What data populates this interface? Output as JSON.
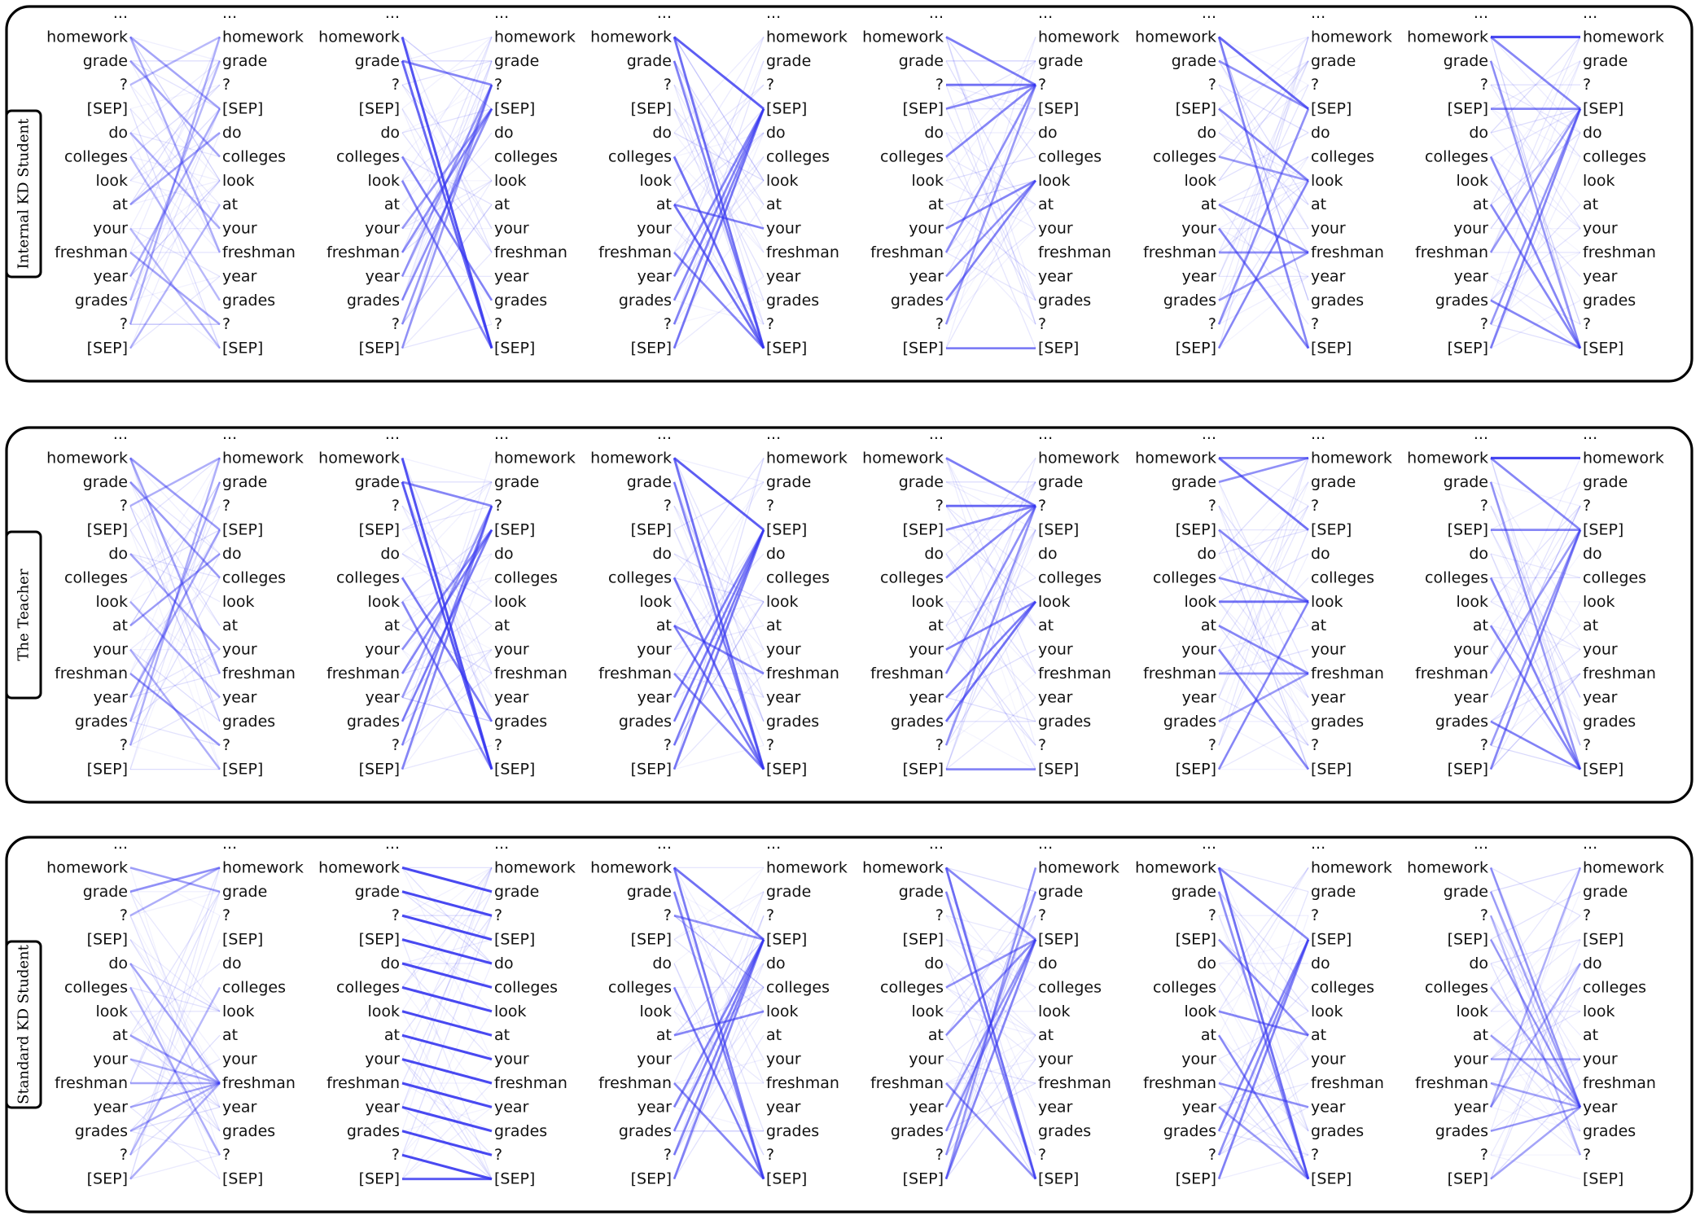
{
  "tokens": [
    "...",
    "homework",
    "grade",
    "?",
    "[SEP]",
    "do",
    "colleges",
    "look",
    "at",
    "your",
    "freshman",
    "year",
    "grades",
    "?",
    "[SEP]"
  ],
  "line_color": "#3535f0",
  "panels": [
    {
      "label": "Internal KD Student",
      "heads": [
        {
          "pattern": "mixed",
          "edges": [
            [
              1,
              4,
              0.45
            ],
            [
              1,
              10,
              0.4
            ],
            [
              2,
              6,
              0.45
            ],
            [
              3,
              1,
              0.35
            ],
            [
              5,
              9,
              0.4
            ],
            [
              8,
              5,
              0.45
            ],
            [
              9,
              14,
              0.35
            ],
            [
              10,
              13,
              0.45
            ],
            [
              11,
              4,
              0.4
            ],
            [
              12,
              2,
              0.35
            ],
            [
              13,
              1,
              0.4
            ],
            [
              14,
              8,
              0.35
            ],
            [
              6,
              12,
              0.35
            ]
          ]
        },
        {
          "pattern": "cross",
          "edges": [
            [
              1,
              14,
              0.85
            ],
            [
              2,
              14,
              0.75
            ],
            [
              6,
              12,
              0.6
            ],
            [
              7,
              14,
              0.6
            ],
            [
              14,
              3,
              0.5
            ],
            [
              13,
              3,
              0.5
            ],
            [
              12,
              4,
              0.55
            ],
            [
              11,
              3,
              0.5
            ],
            [
              10,
              4,
              0.55
            ],
            [
              9,
              4,
              0.5
            ],
            [
              2,
              3,
              0.6
            ]
          ]
        },
        {
          "pattern": "sep",
          "edges": [
            [
              1,
              4,
              0.8
            ],
            [
              1,
              14,
              0.7
            ],
            [
              2,
              14,
              0.6
            ],
            [
              6,
              14,
              0.7
            ],
            [
              8,
              14,
              0.7
            ],
            [
              10,
              14,
              0.6
            ],
            [
              11,
              4,
              0.6
            ],
            [
              12,
              4,
              0.6
            ],
            [
              13,
              4,
              0.6
            ],
            [
              14,
              4,
              0.65
            ],
            [
              8,
              9,
              0.6
            ]
          ]
        },
        {
          "pattern": "q",
          "edges": [
            [
              1,
              3,
              0.65
            ],
            [
              3,
              3,
              0.7
            ],
            [
              4,
              3,
              0.6
            ],
            [
              6,
              3,
              0.6
            ],
            [
              9,
              7,
              0.6
            ],
            [
              10,
              3,
              0.55
            ],
            [
              12,
              7,
              0.6
            ],
            [
              13,
              3,
              0.5
            ],
            [
              14,
              14,
              0.6
            ],
            [
              11,
              7,
              0.5
            ]
          ]
        },
        {
          "pattern": "mixed",
          "edges": [
            [
              1,
              4,
              0.75
            ],
            [
              1,
              14,
              0.6
            ],
            [
              4,
              7,
              0.6
            ],
            [
              6,
              7,
              0.5
            ],
            [
              8,
              10,
              0.6
            ],
            [
              9,
              14,
              0.6
            ],
            [
              10,
              10,
              0.55
            ],
            [
              12,
              10,
              0.5
            ],
            [
              14,
              7,
              0.55
            ],
            [
              13,
              4,
              0.55
            ],
            [
              2,
              4,
              0.55
            ]
          ]
        },
        {
          "pattern": "sep",
          "edges": [
            [
              1,
              1,
              0.9
            ],
            [
              1,
              4,
              0.6
            ],
            [
              4,
              4,
              0.6
            ],
            [
              6,
              14,
              0.6
            ],
            [
              8,
              14,
              0.6
            ],
            [
              10,
              4,
              0.5
            ],
            [
              12,
              14,
              0.6
            ],
            [
              14,
              4,
              0.6
            ],
            [
              13,
              4,
              0.5
            ],
            [
              2,
              14,
              0.5
            ]
          ]
        }
      ]
    },
    {
      "label": "The Teacher",
      "heads": [
        {
          "pattern": "mixed",
          "edges": [
            [
              1,
              4,
              0.5
            ],
            [
              1,
              10,
              0.45
            ],
            [
              2,
              6,
              0.5
            ],
            [
              3,
              1,
              0.4
            ],
            [
              5,
              9,
              0.45
            ],
            [
              8,
              5,
              0.45
            ],
            [
              9,
              14,
              0.4
            ],
            [
              10,
              13,
              0.5
            ],
            [
              11,
              4,
              0.45
            ],
            [
              12,
              2,
              0.4
            ],
            [
              13,
              1,
              0.4
            ],
            [
              7,
              11,
              0.4
            ]
          ]
        },
        {
          "pattern": "cross",
          "edges": [
            [
              1,
              14,
              0.85
            ],
            [
              2,
              14,
              0.8
            ],
            [
              6,
              12,
              0.65
            ],
            [
              7,
              14,
              0.6
            ],
            [
              14,
              3,
              0.6
            ],
            [
              13,
              3,
              0.55
            ],
            [
              12,
              4,
              0.6
            ],
            [
              11,
              3,
              0.5
            ],
            [
              10,
              4,
              0.6
            ],
            [
              9,
              4,
              0.55
            ],
            [
              2,
              3,
              0.6
            ]
          ]
        },
        {
          "pattern": "sep",
          "edges": [
            [
              1,
              4,
              0.8
            ],
            [
              1,
              14,
              0.7
            ],
            [
              2,
              14,
              0.6
            ],
            [
              6,
              14,
              0.7
            ],
            [
              8,
              14,
              0.6
            ],
            [
              10,
              14,
              0.6
            ],
            [
              11,
              4,
              0.6
            ],
            [
              12,
              4,
              0.6
            ],
            [
              13,
              4,
              0.6
            ],
            [
              14,
              4,
              0.65
            ],
            [
              8,
              10,
              0.6
            ]
          ]
        },
        {
          "pattern": "q",
          "edges": [
            [
              1,
              3,
              0.65
            ],
            [
              3,
              3,
              0.75
            ],
            [
              4,
              3,
              0.6
            ],
            [
              6,
              3,
              0.6
            ],
            [
              9,
              7,
              0.6
            ],
            [
              10,
              3,
              0.55
            ],
            [
              12,
              7,
              0.7
            ],
            [
              13,
              3,
              0.5
            ],
            [
              14,
              14,
              0.6
            ],
            [
              11,
              7,
              0.6
            ]
          ]
        },
        {
          "pattern": "mixed",
          "edges": [
            [
              1,
              4,
              0.7
            ],
            [
              1,
              1,
              0.6
            ],
            [
              4,
              7,
              0.6
            ],
            [
              6,
              7,
              0.6
            ],
            [
              7,
              7,
              0.7
            ],
            [
              8,
              10,
              0.6
            ],
            [
              9,
              14,
              0.6
            ],
            [
              10,
              10,
              0.55
            ],
            [
              12,
              10,
              0.5
            ],
            [
              14,
              7,
              0.55
            ],
            [
              2,
              1,
              0.55
            ]
          ]
        },
        {
          "pattern": "sep",
          "edges": [
            [
              1,
              1,
              0.9
            ],
            [
              1,
              4,
              0.6
            ],
            [
              4,
              4,
              0.6
            ],
            [
              6,
              14,
              0.6
            ],
            [
              8,
              14,
              0.6
            ],
            [
              10,
              4,
              0.5
            ],
            [
              12,
              14,
              0.6
            ],
            [
              14,
              4,
              0.6
            ],
            [
              13,
              4,
              0.5
            ],
            [
              2,
              14,
              0.5
            ]
          ]
        }
      ]
    },
    {
      "label": "Standard KD Student",
      "heads": [
        {
          "pattern": "mixed",
          "edges": [
            [
              2,
              1,
              0.55
            ],
            [
              1,
              2,
              0.45
            ],
            [
              3,
              1,
              0.4
            ],
            [
              5,
              10,
              0.45
            ],
            [
              8,
              10,
              0.45
            ],
            [
              9,
              10,
              0.4
            ],
            [
              10,
              10,
              0.45
            ],
            [
              11,
              10,
              0.4
            ],
            [
              12,
              10,
              0.4
            ],
            [
              14,
              10,
              0.4
            ],
            [
              6,
              13,
              0.4
            ],
            [
              13,
              6,
              0.35
            ]
          ]
        },
        {
          "pattern": "diag",
          "edges": [
            [
              1,
              2,
              0.9
            ],
            [
              2,
              3,
              0.9
            ],
            [
              3,
              4,
              0.9
            ],
            [
              4,
              5,
              0.9
            ],
            [
              5,
              6,
              0.9
            ],
            [
              6,
              7,
              0.9
            ],
            [
              7,
              8,
              0.9
            ],
            [
              8,
              9,
              0.9
            ],
            [
              9,
              10,
              0.9
            ],
            [
              10,
              11,
              0.9
            ],
            [
              11,
              12,
              0.9
            ],
            [
              12,
              13,
              0.9
            ],
            [
              13,
              14,
              0.9
            ],
            [
              14,
              14,
              0.8
            ]
          ]
        },
        {
          "pattern": "sep",
          "edges": [
            [
              1,
              4,
              0.7
            ],
            [
              1,
              14,
              0.65
            ],
            [
              2,
              14,
              0.6
            ],
            [
              6,
              14,
              0.6
            ],
            [
              8,
              7,
              0.6
            ],
            [
              10,
              14,
              0.6
            ],
            [
              11,
              4,
              0.6
            ],
            [
              12,
              4,
              0.6
            ],
            [
              13,
              4,
              0.6
            ],
            [
              14,
              4,
              0.6
            ],
            [
              3,
              4,
              0.55
            ]
          ]
        },
        {
          "pattern": "sep",
          "edges": [
            [
              1,
              14,
              0.7
            ],
            [
              1,
              4,
              0.6
            ],
            [
              2,
              14,
              0.55
            ],
            [
              6,
              4,
              0.55
            ],
            [
              8,
              4,
              0.55
            ],
            [
              10,
              14,
              0.55
            ],
            [
              12,
              4,
              0.55
            ],
            [
              14,
              4,
              0.6
            ],
            [
              13,
              2,
              0.5
            ],
            [
              11,
              4,
              0.5
            ],
            [
              14,
              1,
              0.5
            ]
          ]
        },
        {
          "pattern": "mixed",
          "edges": [
            [
              1,
              14,
              0.7
            ],
            [
              1,
              4,
              0.6
            ],
            [
              2,
              14,
              0.55
            ],
            [
              4,
              8,
              0.55
            ],
            [
              7,
              8,
              0.6
            ],
            [
              8,
              14,
              0.55
            ],
            [
              10,
              11,
              0.55
            ],
            [
              12,
              4,
              0.6
            ],
            [
              13,
              4,
              0.55
            ],
            [
              14,
              4,
              0.6
            ],
            [
              11,
              14,
              0.5
            ]
          ]
        },
        {
          "pattern": "dense",
          "edges": [
            [
              1,
              11,
              0.5
            ],
            [
              2,
              11,
              0.45
            ],
            [
              4,
              11,
              0.45
            ],
            [
              6,
              11,
              0.45
            ],
            [
              8,
              11,
              0.45
            ],
            [
              10,
              11,
              0.45
            ],
            [
              12,
              11,
              0.45
            ],
            [
              14,
              11,
              0.45
            ],
            [
              11,
              1,
              0.4
            ],
            [
              11,
              5,
              0.4
            ],
            [
              9,
              9,
              0.45
            ],
            [
              3,
              13,
              0.35
            ]
          ]
        }
      ]
    }
  ]
}
